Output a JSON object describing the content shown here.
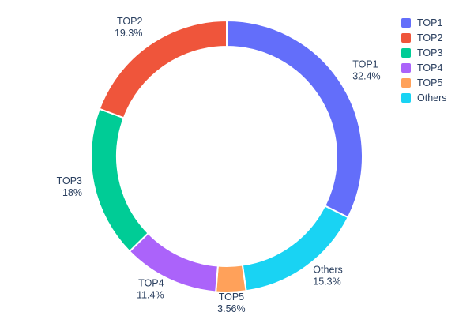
{
  "chart_data": {
    "type": "pie",
    "subtype": "donut",
    "title": "",
    "hole": 0.81,
    "direction": "counterclockwise",
    "start_angle_deg": 0,
    "legend_position": "top-right",
    "text_color": "#2a3f5f",
    "background_color": "#ffffff",
    "slices": [
      {
        "label": "TOP1",
        "value": 32.4,
        "pct_text": "32.4%",
        "color": "#636EFA"
      },
      {
        "label": "TOP2",
        "value": 19.3,
        "pct_text": "19.3%",
        "color": "#EF553B"
      },
      {
        "label": "TOP3",
        "value": 18.0,
        "pct_text": "18%",
        "color": "#00CC96"
      },
      {
        "label": "TOP4",
        "value": 11.4,
        "pct_text": "11.4%",
        "color": "#AB63FA"
      },
      {
        "label": "TOP5",
        "value": 3.56,
        "pct_text": "3.56%",
        "color": "#FFA15A"
      },
      {
        "label": "Others",
        "value": 15.3,
        "pct_text": "15.3%",
        "color": "#19D3F3"
      }
    ]
  }
}
